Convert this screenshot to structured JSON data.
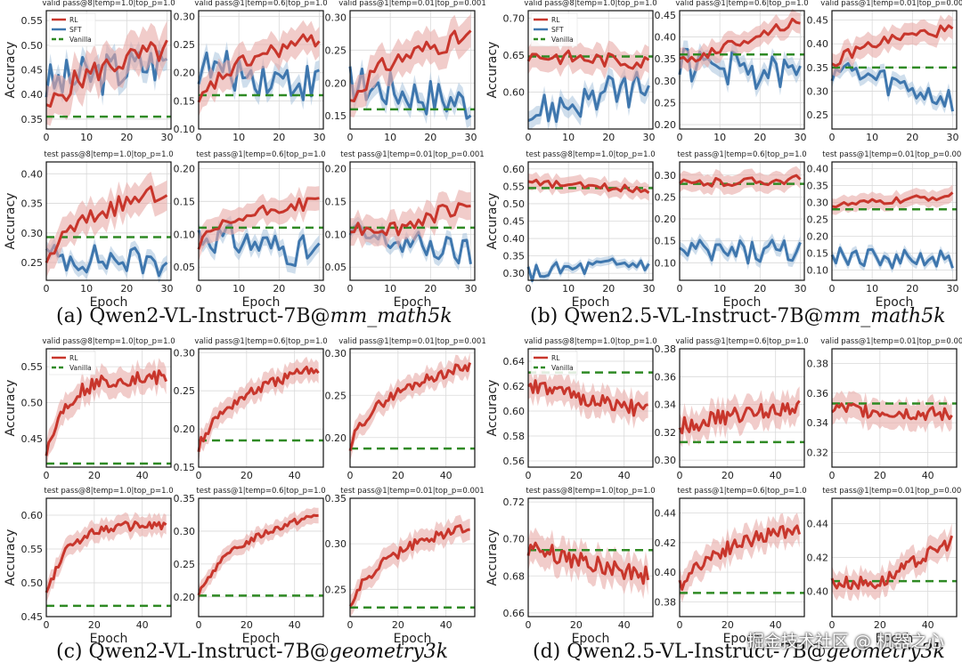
{
  "colors": {
    "rl": "#c8362c",
    "rl_band": "#e7aaa6",
    "sft": "#3f77ae",
    "sft_band": "#a8c2dd",
    "vanilla": "#2f8a24"
  },
  "captions": [
    {
      "label": "(a) Qwen2-VL-Instruct-7B@",
      "italic": "mm_math5k"
    },
    {
      "label": "(b) Qwen2.5-VL-Instruct-7B@",
      "italic": "mm_math5k"
    },
    {
      "label": "(c) Qwen2-VL-Instruct-7B@",
      "italic": "geometry3k"
    },
    {
      "label": "(d) Qwen2.5-VL-Instruct-7B@",
      "italic": "geometry3k"
    }
  ],
  "watermark": "掘金技术社区 @ 机器之心",
  "chart_data": [
    {
      "type": "line",
      "group": "a",
      "title": "valid pass@8|temp=1.0|top_p=1.0",
      "ylabel": "Accuracy",
      "xlabel": "",
      "xlim": [
        0,
        31
      ],
      "ylim": [
        0.33,
        0.57
      ],
      "xticks": [
        0,
        10,
        20,
        30
      ],
      "yticks": [
        0.35,
        0.4,
        0.45,
        0.5,
        0.55
      ],
      "legend": [
        "RL",
        "SFT",
        "Vanilla"
      ],
      "rl": {
        "start": 0.36,
        "end": 0.49,
        "noise": 0.025,
        "shape": "log"
      },
      "sft": {
        "start": 0.42,
        "end": 0.47,
        "noise": 0.045,
        "shape": "flat"
      },
      "vanilla": 0.355
    },
    {
      "type": "line",
      "group": "a",
      "title": "valid pass@1|temp=0.6|top_p=1.0",
      "ylabel": "",
      "xlabel": "",
      "xlim": [
        0,
        31
      ],
      "ylim": [
        0.1,
        0.31
      ],
      "xticks": [
        0,
        10,
        20,
        30
      ],
      "yticks": [
        0.1,
        0.15,
        0.2,
        0.25,
        0.3
      ],
      "rl": {
        "start": 0.14,
        "end": 0.26,
        "noise": 0.015,
        "shape": "log"
      },
      "sft": {
        "start": 0.21,
        "end": 0.18,
        "noise": 0.035,
        "shape": "flat"
      },
      "vanilla": 0.16
    },
    {
      "type": "line",
      "group": "a",
      "title": "valid pass@1|temp=0.01|top_p=0.001",
      "ylabel": "",
      "xlabel": "",
      "xlim": [
        0,
        31
      ],
      "ylim": [
        0.13,
        0.31
      ],
      "xticks": [
        0,
        10,
        20,
        30
      ],
      "yticks": [
        0.15,
        0.2,
        0.25,
        0.3
      ],
      "rl": {
        "start": 0.17,
        "end": 0.27,
        "noise": 0.015,
        "shape": "log"
      },
      "sft": {
        "start": 0.2,
        "end": 0.17,
        "noise": 0.03,
        "shape": "flat"
      },
      "vanilla": 0.16
    },
    {
      "type": "line",
      "group": "a",
      "title": "test pass@8|temp=1.0|top_p=1.0",
      "ylabel": "Accuracy",
      "xlabel": "Epoch",
      "xlim": [
        0,
        31
      ],
      "ylim": [
        0.22,
        0.42
      ],
      "xticks": [
        0,
        10,
        20,
        30
      ],
      "yticks": [
        0.25,
        0.3,
        0.35,
        0.4
      ],
      "rl": {
        "start": 0.25,
        "end": 0.37,
        "noise": 0.015,
        "shape": "log"
      },
      "sft": {
        "start": 0.26,
        "end": 0.25,
        "noise": 0.025,
        "shape": "flat"
      },
      "vanilla": 0.293
    },
    {
      "type": "line",
      "group": "a",
      "title": "test pass@1|temp=0.6|top_p=1.0",
      "ylabel": "",
      "xlabel": "Epoch",
      "xlim": [
        0,
        31
      ],
      "ylim": [
        0.03,
        0.21
      ],
      "xticks": [
        0,
        10,
        20,
        30
      ],
      "yticks": [
        0.05,
        0.1,
        0.15,
        0.2
      ],
      "rl": {
        "start": 0.08,
        "end": 0.15,
        "noise": 0.01,
        "shape": "log"
      },
      "sft": {
        "start": 0.1,
        "end": 0.07,
        "noise": 0.025,
        "shape": "flat"
      },
      "vanilla": 0.11
    },
    {
      "type": "line",
      "group": "a",
      "title": "test pass@1|temp=0.01|top_p=0.001",
      "ylabel": "",
      "xlabel": "Epoch",
      "xlim": [
        0,
        31
      ],
      "ylim": [
        0.03,
        0.21
      ],
      "xticks": [
        0,
        10,
        20,
        30
      ],
      "yticks": [
        0.05,
        0.1,
        0.15,
        0.2
      ],
      "rl": {
        "start": 0.11,
        "end": 0.15,
        "noise": 0.012,
        "shape": "late"
      },
      "sft": {
        "start": 0.1,
        "end": 0.07,
        "noise": 0.022,
        "shape": "flat"
      },
      "vanilla": 0.11
    },
    {
      "type": "line",
      "group": "b",
      "title": "valid pass@8|temp=1.0|top_p=1.0",
      "ylabel": "Accuracy",
      "xlabel": "",
      "xlim": [
        0,
        31
      ],
      "ylim": [
        0.55,
        0.71
      ],
      "xticks": [
        0,
        10,
        20,
        30
      ],
      "yticks": [
        0.6,
        0.65,
        0.7
      ],
      "legend": [
        "RL",
        "SFT",
        "Vanilla"
      ],
      "rl": {
        "start": 0.65,
        "end": 0.64,
        "noise": 0.01,
        "shape": "flat"
      },
      "sft": {
        "start": 0.57,
        "end": 0.61,
        "noise": 0.025,
        "shape": "flat"
      },
      "vanilla": 0.648
    },
    {
      "type": "line",
      "group": "b",
      "title": "valid pass@1|temp=0.6|top_p=1.0",
      "ylabel": "",
      "xlabel": "",
      "xlim": [
        0,
        31
      ],
      "ylim": [
        0.19,
        0.46
      ],
      "xticks": [
        0,
        10,
        20,
        30
      ],
      "yticks": [
        0.2,
        0.25,
        0.3,
        0.35,
        0.4,
        0.45
      ],
      "rl": {
        "start": 0.34,
        "end": 0.44,
        "noise": 0.012,
        "shape": "lin"
      },
      "sft": {
        "start": 0.34,
        "end": 0.31,
        "noise": 0.04,
        "shape": "flat"
      },
      "vanilla": 0.36
    },
    {
      "type": "line",
      "group": "b",
      "title": "valid pass@1|temp=0.01|top_p=0.001",
      "ylabel": "",
      "xlabel": "",
      "xlim": [
        0,
        31
      ],
      "ylim": [
        0.22,
        0.47
      ],
      "xticks": [
        0,
        10,
        20,
        30
      ],
      "yticks": [
        0.25,
        0.3,
        0.35,
        0.4,
        0.45
      ],
      "rl": {
        "start": 0.35,
        "end": 0.43,
        "noise": 0.012,
        "shape": "log"
      },
      "sft": {
        "start": 0.35,
        "end": 0.28,
        "noise": 0.03,
        "shape": "lin"
      },
      "vanilla": 0.35
    },
    {
      "type": "line",
      "group": "b",
      "title": "test pass@8|temp=1.0|top_p=1.0",
      "ylabel": "Accuracy",
      "xlabel": "Epoch",
      "xlim": [
        0,
        31
      ],
      "ylim": [
        0.28,
        0.62
      ],
      "xticks": [
        0,
        10,
        20,
        30
      ],
      "yticks": [
        0.3,
        0.35,
        0.4,
        0.45,
        0.5,
        0.55,
        0.6
      ],
      "rl": {
        "start": 0.56,
        "end": 0.54,
        "noise": 0.01,
        "shape": "flat"
      },
      "sft": {
        "start": 0.3,
        "end": 0.33,
        "noise": 0.025,
        "shape": "flat"
      },
      "vanilla": 0.545
    },
    {
      "type": "line",
      "group": "b",
      "title": "test pass@1|temp=0.6|top_p=1.0",
      "ylabel": "",
      "xlabel": "Epoch",
      "xlim": [
        0,
        31
      ],
      "ylim": [
        0.06,
        0.33
      ],
      "xticks": [
        0,
        10,
        20,
        30
      ],
      "yticks": [
        0.1,
        0.15,
        0.2,
        0.25,
        0.3
      ],
      "rl": {
        "start": 0.28,
        "end": 0.29,
        "noise": 0.01,
        "shape": "flat"
      },
      "sft": {
        "start": 0.12,
        "end": 0.13,
        "noise": 0.03,
        "shape": "flat"
      },
      "vanilla": 0.28
    },
    {
      "type": "line",
      "group": "b",
      "title": "test pass@1|temp=0.01|top_p=0.001",
      "ylabel": "",
      "xlabel": "Epoch",
      "xlim": [
        0,
        31
      ],
      "ylim": [
        0.07,
        0.42
      ],
      "xticks": [
        0,
        10,
        20,
        30
      ],
      "yticks": [
        0.1,
        0.15,
        0.2,
        0.25,
        0.3,
        0.35,
        0.4
      ],
      "rl": {
        "start": 0.29,
        "end": 0.32,
        "noise": 0.01,
        "shape": "flat"
      },
      "sft": {
        "start": 0.14,
        "end": 0.13,
        "noise": 0.03,
        "shape": "flat"
      },
      "vanilla": 0.28
    },
    {
      "type": "line",
      "group": "c",
      "title": "valid pass@8|temp=1.0|top_p=1.0",
      "ylabel": "Accuracy",
      "xlabel": "",
      "xlim": [
        0,
        52
      ],
      "ylim": [
        0.41,
        0.575
      ],
      "xticks": [
        0,
        20,
        40
      ],
      "yticks": [
        0.45,
        0.5,
        0.55
      ],
      "legend": [
        "RL",
        "Vanilla"
      ],
      "rl": {
        "start": 0.43,
        "end": 0.535,
        "noise": 0.01,
        "shape": "sat"
      },
      "vanilla": 0.415
    },
    {
      "type": "line",
      "group": "c",
      "title": "valid pass@1|temp=0.6|top_p=1.0",
      "ylabel": "",
      "xlabel": "",
      "xlim": [
        0,
        52
      ],
      "ylim": [
        0.15,
        0.305
      ],
      "xticks": [
        0,
        20,
        40
      ],
      "yticks": [
        0.15,
        0.2,
        0.25,
        0.3
      ],
      "rl": {
        "start": 0.175,
        "end": 0.28,
        "noise": 0.007,
        "shape": "log"
      },
      "vanilla": 0.185
    },
    {
      "type": "line",
      "group": "c",
      "title": "valid pass@1|temp=0.01|top_p=0.001",
      "ylabel": "",
      "xlabel": "",
      "xlim": [
        0,
        52
      ],
      "ylim": [
        0.165,
        0.305
      ],
      "xticks": [
        0,
        20,
        40
      ],
      "yticks": [
        0.2,
        0.25,
        0.3
      ],
      "rl": {
        "start": 0.19,
        "end": 0.285,
        "noise": 0.006,
        "shape": "log"
      },
      "vanilla": 0.187
    },
    {
      "type": "line",
      "group": "c",
      "title": "test pass@8|temp=1.0|top_p=1.0",
      "ylabel": "Accuracy",
      "xlabel": "Epoch",
      "xlim": [
        0,
        52
      ],
      "ylim": [
        0.45,
        0.625
      ],
      "xticks": [
        0,
        20,
        40
      ],
      "yticks": [
        0.45,
        0.5,
        0.55,
        0.6
      ],
      "rl": {
        "start": 0.48,
        "end": 0.585,
        "noise": 0.007,
        "shape": "sat"
      },
      "vanilla": 0.466
    },
    {
      "type": "line",
      "group": "c",
      "title": "test pass@1|temp=0.6|top_p=1.0",
      "ylabel": "",
      "xlabel": "Epoch",
      "xlim": [
        0,
        52
      ],
      "ylim": [
        0.17,
        0.35
      ],
      "xticks": [
        0,
        20,
        40
      ],
      "yticks": [
        0.2,
        0.25,
        0.3,
        0.35
      ],
      "rl": {
        "start": 0.2,
        "end": 0.325,
        "noise": 0.005,
        "shape": "log"
      },
      "vanilla": 0.202
    },
    {
      "type": "line",
      "group": "c",
      "title": "test pass@1|temp=0.01|top_p=0.001",
      "ylabel": "",
      "xlabel": "Epoch",
      "xlim": [
        0,
        52
      ],
      "ylim": [
        0.22,
        0.35
      ],
      "xticks": [
        0,
        20,
        40
      ],
      "yticks": [
        0.25,
        0.3,
        0.35
      ],
      "rl": {
        "start": 0.23,
        "end": 0.32,
        "noise": 0.006,
        "shape": "log"
      },
      "vanilla": 0.23
    },
    {
      "type": "line",
      "group": "d",
      "title": "valid pass@8|temp=1.0|top_p=1.0",
      "ylabel": "Accuracy",
      "xlabel": "",
      "xlim": [
        0,
        52
      ],
      "ylim": [
        0.555,
        0.65
      ],
      "xticks": [
        0,
        20,
        40
      ],
      "yticks": [
        0.56,
        0.58,
        0.6,
        0.62,
        0.64
      ],
      "legend": [
        "RL",
        "Vanilla"
      ],
      "rl": {
        "start": 0.62,
        "end": 0.6,
        "noise": 0.006,
        "shape": "lin"
      },
      "vanilla": 0.631
    },
    {
      "type": "line",
      "group": "d",
      "title": "valid pass@1|temp=0.6|top_p=1.0",
      "ylabel": "",
      "xlabel": "",
      "xlim": [
        0,
        52
      ],
      "ylim": [
        0.295,
        0.38
      ],
      "xticks": [
        0,
        20,
        40
      ],
      "yticks": [
        0.3,
        0.32,
        0.34,
        0.36,
        0.38
      ],
      "rl": {
        "start": 0.325,
        "end": 0.34,
        "noise": 0.006,
        "shape": "flat"
      },
      "vanilla": 0.313
    },
    {
      "type": "line",
      "group": "d",
      "title": "valid pass@1|temp=0.01|top_p=0.001",
      "ylabel": "",
      "xlabel": "",
      "xlim": [
        0,
        52
      ],
      "ylim": [
        0.31,
        0.39
      ],
      "xticks": [
        0,
        20,
        40
      ],
      "yticks": [
        0.32,
        0.34,
        0.36,
        0.38
      ],
      "rl": {
        "start": 0.35,
        "end": 0.345,
        "noise": 0.005,
        "shape": "flat"
      },
      "vanilla": 0.353
    },
    {
      "type": "line",
      "group": "d",
      "title": "test pass@8|temp=1.0|top_p=1.0",
      "ylabel": "Accuracy",
      "xlabel": "Epoch",
      "xlim": [
        0,
        52
      ],
      "ylim": [
        0.658,
        0.722
      ],
      "xticks": [
        0,
        20,
        40
      ],
      "yticks": [
        0.66,
        0.68,
        0.7,
        0.72
      ],
      "rl": {
        "start": 0.695,
        "end": 0.68,
        "noise": 0.005,
        "shape": "lin"
      },
      "vanilla": 0.694
    },
    {
      "type": "line",
      "group": "d",
      "title": "test pass@1|temp=0.6|top_p=1.0",
      "ylabel": "",
      "xlabel": "Epoch",
      "xlim": [
        0,
        52
      ],
      "ylim": [
        0.37,
        0.45
      ],
      "xticks": [
        0,
        20,
        40
      ],
      "yticks": [
        0.38,
        0.4,
        0.42,
        0.44
      ],
      "rl": {
        "start": 0.39,
        "end": 0.43,
        "noise": 0.005,
        "shape": "log"
      },
      "vanilla": 0.386
    },
    {
      "type": "line",
      "group": "d",
      "title": "test pass@1|temp=0.01|top_p=0.001",
      "ylabel": "",
      "xlabel": "Epoch",
      "xlim": [
        0,
        52
      ],
      "ylim": [
        0.385,
        0.455
      ],
      "xticks": [
        0,
        20,
        40
      ],
      "yticks": [
        0.4,
        0.42,
        0.44
      ],
      "rl": {
        "start": 0.405,
        "end": 0.43,
        "noise": 0.004,
        "shape": "late"
      },
      "vanilla": 0.406
    }
  ]
}
